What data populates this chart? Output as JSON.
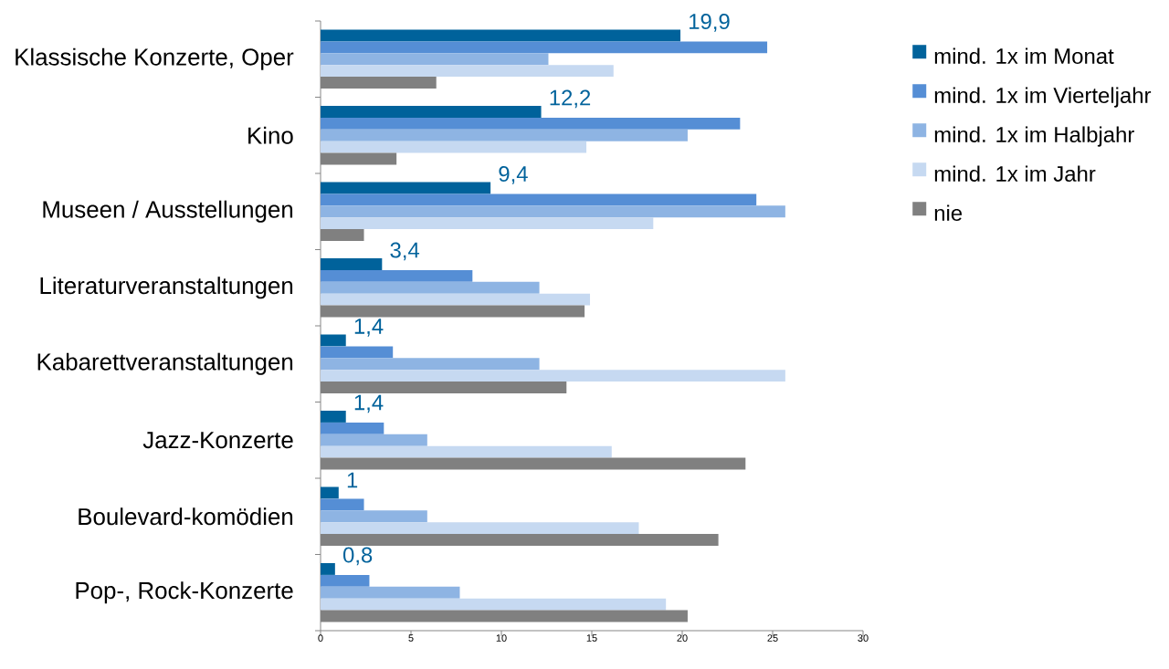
{
  "chart_data": {
    "type": "bar",
    "orientation": "horizontal",
    "categories": [
      "Klassische Konzerte, Oper",
      "Kino",
      "Museen / Ausstellungen",
      "Literaturveranstaltungen",
      "Kabarettveranstaltungen",
      "Jazz-Konzerte",
      "Boulevard-komödien",
      "Pop-, Rock-Konzerte"
    ],
    "series": [
      {
        "name": "mind. 1x im Monat",
        "color": "#00629b",
        "values": [
          19.9,
          12.2,
          9.4,
          3.4,
          1.4,
          1.4,
          1,
          0.8
        ],
        "value_labels": [
          "19,9",
          "12,2",
          "9,4",
          "3,4",
          "1,4",
          "1,4",
          "1",
          "0,8"
        ]
      },
      {
        "name": "mind. 1x im Vierteljahr",
        "color": "#558ed5",
        "values": [
          24.7,
          23.2,
          24.1,
          8.4,
          4.0,
          3.5,
          2.4,
          2.7
        ]
      },
      {
        "name": "mind. 1x im Halbjahr",
        "color": "#8eb4e3",
        "values": [
          12.6,
          20.3,
          25.7,
          12.1,
          12.1,
          5.9,
          5.9,
          7.7
        ]
      },
      {
        "name": "mind. 1x im Jahr",
        "color": "#c6d9f1",
        "values": [
          16.2,
          14.7,
          18.4,
          14.9,
          25.7,
          16.1,
          17.6,
          19.1
        ]
      },
      {
        "name": "nie",
        "color": "#808080",
        "values": [
          6.4,
          4.2,
          2.4,
          14.6,
          13.6,
          23.5,
          22.0,
          20.3
        ]
      }
    ],
    "xlim": [
      0,
      30
    ],
    "xticks": [
      0,
      5,
      10,
      15,
      20,
      25,
      30
    ],
    "legend": "right"
  }
}
